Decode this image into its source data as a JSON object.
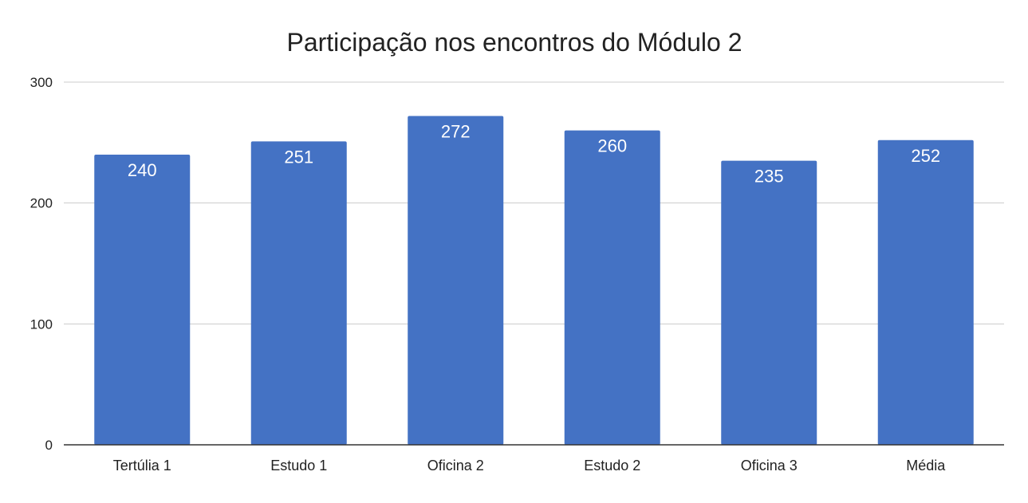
{
  "chart_data": {
    "type": "bar",
    "title": "Participação nos encontros do Módulo 2",
    "xlabel": "",
    "ylabel": "",
    "categories": [
      "Tertúlia 1",
      "Estudo 1",
      "Oficina 2",
      "Estudo 2",
      "Oficina 3",
      "Média"
    ],
    "values": [
      240,
      251,
      272,
      260,
      235,
      252
    ],
    "data_labels": [
      "240",
      "251",
      "272",
      "260",
      "235",
      "252"
    ],
    "ylim": [
      0,
      300
    ],
    "y_ticks": [
      "0",
      "100",
      "200",
      "300"
    ],
    "grid": true,
    "legend": "none",
    "colors": {
      "bar": "#4472c4",
      "bar_label": "#ffffff",
      "gridline": "#cccccc",
      "axis": "#333333",
      "text": "#222222"
    }
  }
}
